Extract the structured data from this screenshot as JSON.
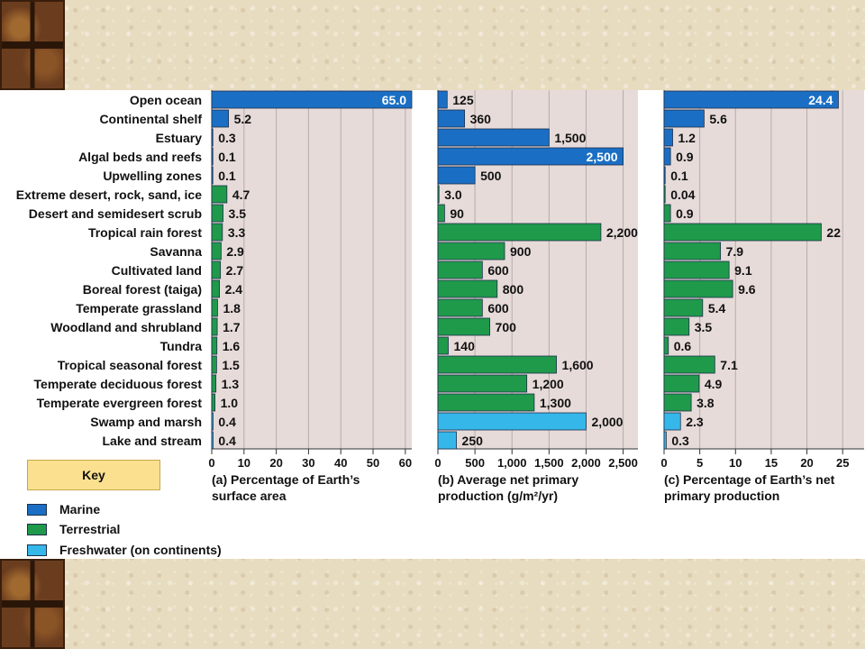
{
  "colors": {
    "Marine": "#1a6fc4",
    "Terrestrial": "#1f9a4b",
    "Freshwater": "#35b7ea",
    "panel_bg": "#e6dbd9",
    "grid": "#b8acab"
  },
  "key": {
    "title": "Key",
    "items": [
      {
        "label": "Marine",
        "color": "#1a6fc4"
      },
      {
        "label": "Terrestrial",
        "color": "#1f9a4b"
      },
      {
        "label": "Freshwater (on continents)",
        "color": "#35b7ea"
      }
    ]
  },
  "chart_data": {
    "type": "bar",
    "orientation": "horizontal",
    "categories": [
      "Open ocean",
      "Continental shelf",
      "Estuary",
      "Algal beds and reefs",
      "Upwelling zones",
      "Extreme desert, rock, sand, ice",
      "Desert and semidesert scrub",
      "Tropical rain forest",
      "Savanna",
      "Cultivated land",
      "Boreal forest (taiga)",
      "Temperate grassland",
      "Woodland and shrubland",
      "Tundra",
      "Tropical seasonal forest",
      "Temperate deciduous forest",
      "Temperate evergreen forest",
      "Swamp and marsh",
      "Lake and stream"
    ],
    "category_type": [
      "Marine",
      "Marine",
      "Marine",
      "Marine",
      "Marine",
      "Terrestrial",
      "Terrestrial",
      "Terrestrial",
      "Terrestrial",
      "Terrestrial",
      "Terrestrial",
      "Terrestrial",
      "Terrestrial",
      "Terrestrial",
      "Terrestrial",
      "Terrestrial",
      "Terrestrial",
      "Freshwater",
      "Freshwater"
    ],
    "panels": [
      {
        "title_lines": [
          "(a) Percentage of Earth’s",
          "surface area"
        ],
        "xlim": [
          0,
          62
        ],
        "ticks": [
          0,
          10,
          20,
          30,
          40,
          50,
          60
        ],
        "tick_labels": [
          "0",
          "10",
          "20",
          "30",
          "40",
          "50",
          "60"
        ],
        "values": [
          65.0,
          5.2,
          0.3,
          0.1,
          0.1,
          4.7,
          3.5,
          3.3,
          2.9,
          2.7,
          2.4,
          1.8,
          1.7,
          1.6,
          1.5,
          1.3,
          1.0,
          0.4,
          0.4
        ],
        "labels": [
          "65.0",
          "5.2",
          "0.3",
          "0.1",
          "0.1",
          "4.7",
          "3.5",
          "3.3",
          "2.9",
          "2.7",
          "2.4",
          "1.8",
          "1.7",
          "1.6",
          "1.5",
          "1.3",
          "1.0",
          "0.4",
          "0.4"
        ]
      },
      {
        "title_lines": [
          "(b) Average net primary",
          "production (g/m²/yr)"
        ],
        "xlim": [
          0,
          2700
        ],
        "ticks": [
          0,
          500,
          1000,
          1500,
          2000,
          2500
        ],
        "tick_labels": [
          "0",
          "500",
          "1,000",
          "1,500",
          "2,000",
          "2,500"
        ],
        "values": [
          125,
          360,
          1500,
          2500,
          500,
          3.0,
          90,
          2200,
          900,
          600,
          800,
          600,
          700,
          140,
          1600,
          1200,
          1300,
          2000,
          250
        ],
        "labels": [
          "125",
          "360",
          "1,500",
          "2,500",
          "500",
          "3.0",
          "90",
          "2,200",
          "900",
          "600",
          "800",
          "600",
          "700",
          "140",
          "1,600",
          "1,200",
          "1,300",
          "2,000",
          "250"
        ]
      },
      {
        "title_lines": [
          "(c) Percentage of Earth’s net",
          "primary production"
        ],
        "xlim": [
          0,
          28
        ],
        "ticks": [
          0,
          5,
          10,
          15,
          20,
          25
        ],
        "tick_labels": [
          "0",
          "5",
          "10",
          "15",
          "20",
          "25"
        ],
        "values": [
          24.4,
          5.6,
          1.2,
          0.9,
          0.1,
          0.04,
          0.9,
          22,
          7.9,
          9.1,
          9.6,
          5.4,
          3.5,
          0.6,
          7.1,
          4.9,
          3.8,
          2.3,
          0.3
        ],
        "labels": [
          "24.4",
          "5.6",
          "1.2",
          "0.9",
          "0.1",
          "0.04",
          "0.9",
          "22",
          "7.9",
          "9.1",
          "9.6",
          "5.4",
          "3.5",
          "0.6",
          "7.1",
          "4.9",
          "3.8",
          "2.3",
          "0.3"
        ]
      }
    ]
  }
}
